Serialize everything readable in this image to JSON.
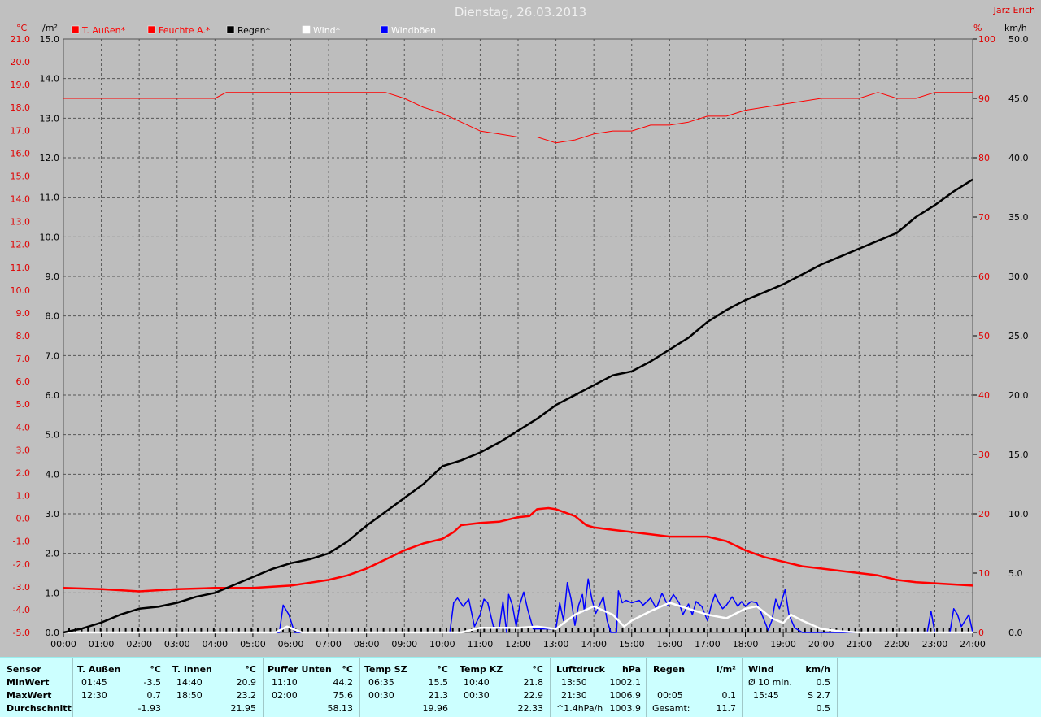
{
  "header": {
    "title": "Dienstag, 26.03.2013",
    "author": "Jarz Erich"
  },
  "legend": [
    {
      "label": "T. Außen*",
      "color": "#ff0000",
      "text_color": "#ff0000"
    },
    {
      "label": "Feuchte A.*",
      "color": "#ff0000",
      "text_color": "#ff0000"
    },
    {
      "label": "Regen*",
      "color": "#000000",
      "text_color": "#000000"
    },
    {
      "label": "Wind*",
      "color": "#ffffff",
      "text_color": "#ffffff"
    },
    {
      "label": "Windböen",
      "color": "#0000ff",
      "text_color": "#ffffff"
    }
  ],
  "axes": {
    "temp_unit": "°C",
    "rain_unit": "l/m²",
    "humidity_unit": "%",
    "wind_unit": "km/h",
    "temp_ticks": [
      "21.0",
      "20.0",
      "19.0",
      "18.0",
      "17.0",
      "16.0",
      "15.0",
      "14.0",
      "13.0",
      "12.0",
      "11.0",
      "10.0",
      "9.0",
      "8.0",
      "7.0",
      "6.0",
      "5.0",
      "4.0",
      "3.0",
      "2.0",
      "1.0",
      "0.0",
      "-1.0",
      "-2.0",
      "-3.0",
      "-4.0",
      "-5.0"
    ],
    "rain_ticks": [
      "15.0",
      "14.0",
      "13.0",
      "12.0",
      "11.0",
      "10.0",
      "9.0",
      "8.0",
      "7.0",
      "6.0",
      "5.0",
      "4.0",
      "3.0",
      "2.0",
      "1.0",
      "0.0"
    ],
    "humidity_ticks": [
      "100",
      "90",
      "80",
      "70",
      "60",
      "50",
      "40",
      "30",
      "20",
      "10",
      "0"
    ],
    "wind_ticks": [
      "50.0",
      "45.0",
      "40.0",
      "35.0",
      "30.0",
      "25.0",
      "20.0",
      "15.0",
      "10.0",
      "5.0",
      "0.0"
    ],
    "time_ticks": [
      "00:00",
      "01:00",
      "02:00",
      "03:00",
      "04:00",
      "05:00",
      "06:00",
      "07:00",
      "08:00",
      "09:00",
      "10:00",
      "11:00",
      "12:00",
      "13:00",
      "14:00",
      "15:00",
      "16:00",
      "17:00",
      "18:00",
      "19:00",
      "20:00",
      "21:00",
      "22:00",
      "23:00",
      "24:00"
    ]
  },
  "chart_data": {
    "type": "line",
    "title": "Dienstag, 26.03.2013",
    "x_unit": "hours",
    "xlim": [
      0,
      24
    ],
    "temp_ylim": [
      -5,
      21
    ],
    "rain_ylim": [
      0,
      15
    ],
    "humidity_ylim": [
      0,
      100
    ],
    "wind_ylim": [
      0,
      50
    ],
    "grid": true,
    "series": [
      {
        "name": "T. Außen*",
        "axis": "temp",
        "color": "#ff0000",
        "points": [
          [
            0,
            -3.05
          ],
          [
            1,
            -3.1
          ],
          [
            2,
            -3.2
          ],
          [
            3,
            -3.1
          ],
          [
            4,
            -3.05
          ],
          [
            5,
            -3.05
          ],
          [
            6,
            -2.95
          ],
          [
            7,
            -2.7
          ],
          [
            7.5,
            -2.5
          ],
          [
            8,
            -2.2
          ],
          [
            8.5,
            -1.8
          ],
          [
            9,
            -1.4
          ],
          [
            9.5,
            -1.1
          ],
          [
            10,
            -0.9
          ],
          [
            10.3,
            -0.6
          ],
          [
            10.5,
            -0.3
          ],
          [
            11,
            -0.2
          ],
          [
            11.5,
            -0.15
          ],
          [
            12,
            0.05
          ],
          [
            12.3,
            0.1
          ],
          [
            12.5,
            0.4
          ],
          [
            12.8,
            0.45
          ],
          [
            13,
            0.4
          ],
          [
            13.5,
            0.1
          ],
          [
            13.8,
            -0.3
          ],
          [
            14,
            -0.4
          ],
          [
            14.5,
            -0.5
          ],
          [
            15,
            -0.6
          ],
          [
            15.5,
            -0.7
          ],
          [
            16,
            -0.8
          ],
          [
            16.5,
            -0.8
          ],
          [
            17,
            -0.8
          ],
          [
            17.5,
            -1.0
          ],
          [
            18,
            -1.4
          ],
          [
            18.5,
            -1.7
          ],
          [
            19,
            -1.9
          ],
          [
            19.5,
            -2.1
          ],
          [
            20,
            -2.2
          ],
          [
            20.5,
            -2.3
          ],
          [
            21,
            -2.4
          ],
          [
            21.5,
            -2.5
          ],
          [
            22,
            -2.7
          ],
          [
            22.5,
            -2.8
          ],
          [
            23,
            -2.85
          ],
          [
            23.5,
            -2.9
          ],
          [
            24,
            -2.95
          ]
        ]
      },
      {
        "name": "Feuchte A.*",
        "axis": "humidity",
        "color": "#ff0000",
        "points": [
          [
            0,
            90
          ],
          [
            3.5,
            90
          ],
          [
            4,
            90
          ],
          [
            4.3,
            91
          ],
          [
            6,
            91
          ],
          [
            8,
            91
          ],
          [
            8.5,
            91
          ],
          [
            9,
            90
          ],
          [
            9.5,
            88.5
          ],
          [
            10,
            87.5
          ],
          [
            10.5,
            86
          ],
          [
            11,
            84.5
          ],
          [
            11.5,
            84
          ],
          [
            12,
            83.5
          ],
          [
            12.5,
            83.5
          ],
          [
            13,
            82.5
          ],
          [
            13.5,
            83
          ],
          [
            14,
            84
          ],
          [
            14.5,
            84.5
          ],
          [
            15,
            84.5
          ],
          [
            15.5,
            85.5
          ],
          [
            16,
            85.5
          ],
          [
            16.5,
            86
          ],
          [
            17,
            87
          ],
          [
            17.5,
            87
          ],
          [
            18,
            88
          ],
          [
            18.5,
            88.5
          ],
          [
            19,
            89
          ],
          [
            19.5,
            89.5
          ],
          [
            20,
            90
          ],
          [
            21,
            90
          ],
          [
            21.5,
            91
          ],
          [
            22,
            90
          ],
          [
            22.5,
            90
          ],
          [
            23,
            91
          ],
          [
            24,
            91
          ]
        ]
      },
      {
        "name": "Regen*",
        "axis": "rain",
        "color": "#000000",
        "points": [
          [
            0,
            0.0
          ],
          [
            0.5,
            0.1
          ],
          [
            1,
            0.25
          ],
          [
            1.5,
            0.45
          ],
          [
            2,
            0.6
          ],
          [
            2.5,
            0.65
          ],
          [
            3,
            0.75
          ],
          [
            3.5,
            0.9
          ],
          [
            4,
            1.0
          ],
          [
            4.5,
            1.2
          ],
          [
            5,
            1.4
          ],
          [
            5.5,
            1.6
          ],
          [
            6,
            1.75
          ],
          [
            6.5,
            1.85
          ],
          [
            7,
            2.0
          ],
          [
            7.5,
            2.3
          ],
          [
            8,
            2.7
          ],
          [
            8.5,
            3.05
          ],
          [
            9,
            3.4
          ],
          [
            9.5,
            3.75
          ],
          [
            10,
            4.2
          ],
          [
            10.5,
            4.35
          ],
          [
            11,
            4.55
          ],
          [
            11.5,
            4.8
          ],
          [
            12,
            5.1
          ],
          [
            12.5,
            5.4
          ],
          [
            13,
            5.75
          ],
          [
            13.5,
            6.0
          ],
          [
            14,
            6.25
          ],
          [
            14.5,
            6.5
          ],
          [
            15,
            6.6
          ],
          [
            15.5,
            6.85
          ],
          [
            16,
            7.15
          ],
          [
            16.5,
            7.45
          ],
          [
            17,
            7.85
          ],
          [
            17.5,
            8.15
          ],
          [
            18,
            8.4
          ],
          [
            18.5,
            8.6
          ],
          [
            19,
            8.8
          ],
          [
            19.5,
            9.05
          ],
          [
            20,
            9.3
          ],
          [
            20.5,
            9.5
          ],
          [
            21,
            9.7
          ],
          [
            21.5,
            9.9
          ],
          [
            22,
            10.1
          ],
          [
            22.5,
            10.5
          ],
          [
            23,
            10.8
          ],
          [
            23.5,
            11.15
          ],
          [
            24,
            11.45
          ]
        ]
      },
      {
        "name": "Wind*",
        "axis": "wind",
        "color": "#ffffff",
        "points": [
          [
            0,
            0
          ],
          [
            5.6,
            0
          ],
          [
            5.9,
            0.5
          ],
          [
            6.3,
            0
          ],
          [
            10.5,
            0
          ],
          [
            11,
            0.4
          ],
          [
            12,
            0.4
          ],
          [
            12.5,
            0.5
          ],
          [
            13,
            0.3
          ],
          [
            13.5,
            1.5
          ],
          [
            14,
            2.2
          ],
          [
            14.5,
            1.5
          ],
          [
            14.8,
            0.5
          ],
          [
            15,
            1.0
          ],
          [
            15.5,
            1.8
          ],
          [
            16,
            2.5
          ],
          [
            16.5,
            2.0
          ],
          [
            17,
            1.5
          ],
          [
            17.5,
            1.2
          ],
          [
            18,
            2.0
          ],
          [
            18.3,
            2.2
          ],
          [
            18.7,
            1.2
          ],
          [
            19,
            0.8
          ],
          [
            19.2,
            1.5
          ],
          [
            19.5,
            1.0
          ],
          [
            20,
            0.3
          ],
          [
            20.5,
            0.1
          ],
          [
            21,
            0
          ],
          [
            24,
            0
          ]
        ]
      },
      {
        "name": "Windböen",
        "axis": "wind",
        "color": "#0000ff",
        "points": [
          [
            0,
            0
          ],
          [
            5.7,
            0
          ],
          [
            5.8,
            2.3
          ],
          [
            5.95,
            1.5
          ],
          [
            6.1,
            0
          ],
          [
            10.2,
            0
          ],
          [
            10.3,
            2.5
          ],
          [
            10.4,
            2.9
          ],
          [
            10.55,
            2.2
          ],
          [
            10.7,
            2.8
          ],
          [
            10.85,
            0.5
          ],
          [
            11,
            1.5
          ],
          [
            11.1,
            2.8
          ],
          [
            11.2,
            2.5
          ],
          [
            11.35,
            0.5
          ],
          [
            11.5,
            0.3
          ],
          [
            11.6,
            2.6
          ],
          [
            11.7,
            0
          ],
          [
            11.75,
            3.2
          ],
          [
            11.85,
            2.3
          ],
          [
            11.95,
            0.5
          ],
          [
            12.05,
            2.4
          ],
          [
            12.15,
            3.4
          ],
          [
            12.25,
            2.0
          ],
          [
            12.4,
            0.3
          ],
          [
            13.0,
            0.3
          ],
          [
            13.1,
            2.5
          ],
          [
            13.2,
            1.0
          ],
          [
            13.3,
            4.2
          ],
          [
            13.4,
            2.8
          ],
          [
            13.5,
            0.6
          ],
          [
            13.6,
            2.3
          ],
          [
            13.7,
            3.2
          ],
          [
            13.75,
            1.8
          ],
          [
            13.85,
            4.5
          ],
          [
            13.95,
            2.8
          ],
          [
            14.05,
            1.6
          ],
          [
            14.15,
            2.3
          ],
          [
            14.25,
            3.0
          ],
          [
            14.35,
            1.0
          ],
          [
            14.45,
            0
          ],
          [
            14.6,
            0
          ],
          [
            14.65,
            3.5
          ],
          [
            14.75,
            2.5
          ],
          [
            14.85,
            2.7
          ],
          [
            15.0,
            2.5
          ],
          [
            15.2,
            2.7
          ],
          [
            15.3,
            2.3
          ],
          [
            15.5,
            2.9
          ],
          [
            15.65,
            2.0
          ],
          [
            15.8,
            3.3
          ],
          [
            15.95,
            2.3
          ],
          [
            16.1,
            3.2
          ],
          [
            16.25,
            2.5
          ],
          [
            16.35,
            1.5
          ],
          [
            16.5,
            2.4
          ],
          [
            16.6,
            1.5
          ],
          [
            16.7,
            2.6
          ],
          [
            16.85,
            2.2
          ],
          [
            17.0,
            1.0
          ],
          [
            17.1,
            2.3
          ],
          [
            17.2,
            3.2
          ],
          [
            17.3,
            2.5
          ],
          [
            17.4,
            2.0
          ],
          [
            17.5,
            2.3
          ],
          [
            17.65,
            3.0
          ],
          [
            17.8,
            2.2
          ],
          [
            17.9,
            2.6
          ],
          [
            18.0,
            2.2
          ],
          [
            18.15,
            2.6
          ],
          [
            18.3,
            2.5
          ],
          [
            18.4,
            1.8
          ],
          [
            18.5,
            1.0
          ],
          [
            18.6,
            0.2
          ],
          [
            18.7,
            1.0
          ],
          [
            18.8,
            2.8
          ],
          [
            18.9,
            2.0
          ],
          [
            19.05,
            3.6
          ],
          [
            19.15,
            1.5
          ],
          [
            19.3,
            0.4
          ],
          [
            19.5,
            0
          ],
          [
            22.8,
            0
          ],
          [
            22.9,
            1.8
          ],
          [
            23.0,
            0
          ],
          [
            23.4,
            0
          ],
          [
            23.5,
            2.0
          ],
          [
            23.6,
            1.5
          ],
          [
            23.7,
            0.5
          ],
          [
            23.8,
            1.0
          ],
          [
            23.9,
            1.5
          ],
          [
            24,
            0
          ]
        ]
      }
    ]
  },
  "stats": {
    "labels": {
      "header": "Sensor",
      "min": "MinWert",
      "max": "MaxWert",
      "avg": "Durchschnitt"
    },
    "t_aussen": {
      "title": "T. Außen",
      "unit": "°C",
      "min_time": "01:45",
      "min_val": "-3.5",
      "max_time": "12:30",
      "max_val": "0.7",
      "avg": "-1.93"
    },
    "t_innen": {
      "title": "T. Innen",
      "unit": "°C",
      "min_time": "14:40",
      "min_val": "20.9",
      "max_time": "18:50",
      "max_val": "23.2",
      "avg": "21.95"
    },
    "puffer": {
      "title": "Puffer Unten",
      "unit": "°C",
      "min_time": "11:10",
      "min_val": "44.2",
      "max_time": "02:00",
      "max_val": "75.6",
      "avg": "58.13"
    },
    "temp_sz": {
      "title": "Temp SZ",
      "unit": "°C",
      "min_time": "06:35",
      "min_val": "15.5",
      "max_time": "00:30",
      "max_val": "21.3",
      "avg": "19.96"
    },
    "temp_kz": {
      "title": "Temp KZ",
      "unit": "°C",
      "min_time": "10:40",
      "min_val": "21.8",
      "max_time": "00:30",
      "max_val": "22.9",
      "avg": "22.33"
    },
    "luftdruck": {
      "title": "Luftdruck",
      "unit": "hPa",
      "min_time": "13:50",
      "min_val": "1002.1",
      "max_time": "21:30",
      "max_val": "1006.9",
      "trend": "^1.4hPa/h",
      "avg": "1003.9"
    },
    "regen": {
      "title": "Regen",
      "unit": "l/m²",
      "max_time": "00:05",
      "max_val": "0.1",
      "total_label": "Gesamt:",
      "total": "11.7"
    },
    "wind": {
      "title": "Wind",
      "unit": "km/h",
      "min_time": "Ø 10 min.",
      "min_val": "0.5",
      "max_time": "15:45",
      "max_val": "S 2.7",
      "avg": "0.5"
    }
  }
}
